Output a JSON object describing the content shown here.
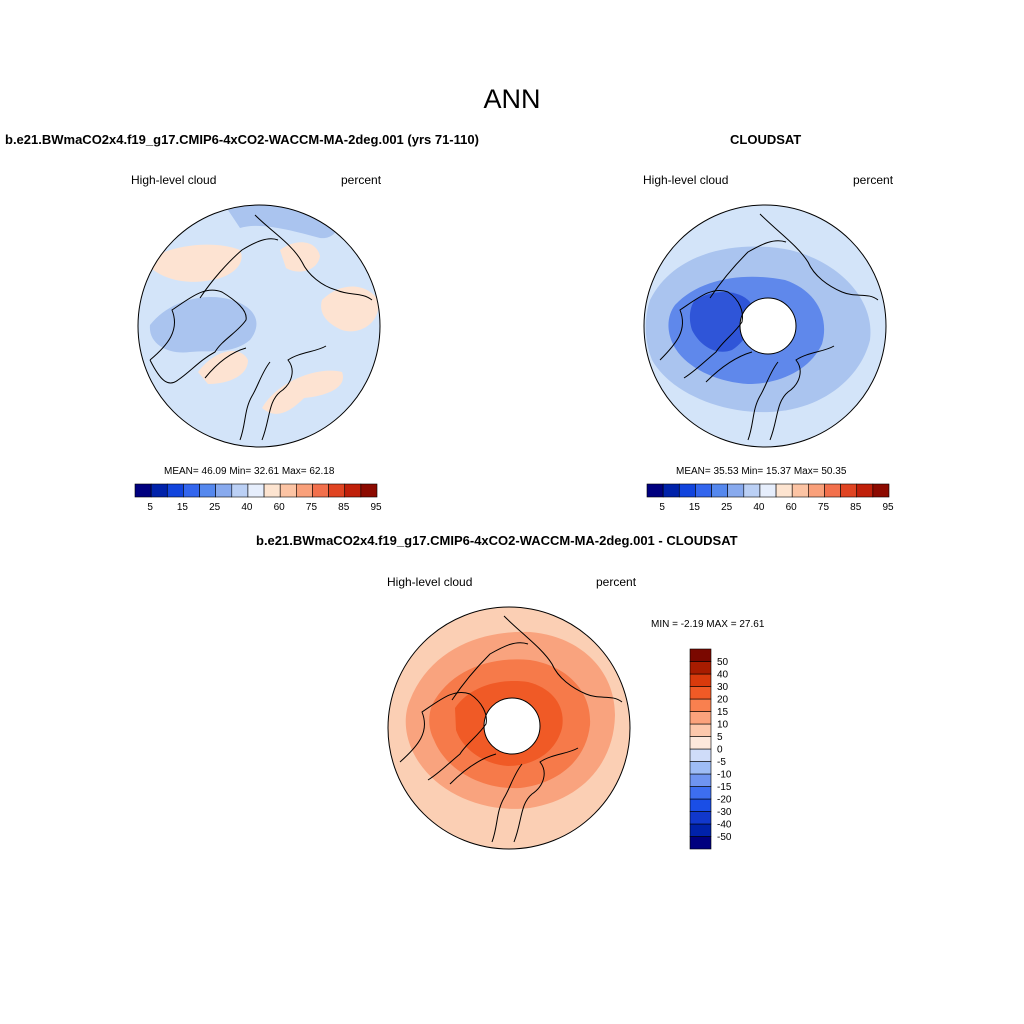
{
  "season": "ANN",
  "panels": [
    {
      "id": "model",
      "title": "b.e21.BWmaCO2x4.f19_g17.CMIP6-4xCO2-WACCM-MA-2deg.001 (yrs 71-110)",
      "left_label": "High-level cloud",
      "right_label": "percent",
      "stats": "MEAN=  46.09  Min=  32.61  Max=  62.18"
    },
    {
      "id": "obs",
      "title": "CLOUDSAT",
      "left_label": "High-level cloud",
      "right_label": "percent",
      "stats": "MEAN=  35.53  Min=  15.37  Max=  50.35"
    },
    {
      "id": "diff",
      "title": "b.e21.BWmaCO2x4.f19_g17.CMIP6-4xCO2-WACCM-MA-2deg.001 - CLOUDSAT",
      "left_label": "High-level cloud",
      "right_label": "percent",
      "stats": "MIN =  -2.19 MAX =  27.61"
    }
  ],
  "colorbars": {
    "top_colors": [
      "#00007f",
      "#0022aa",
      "#1144dd",
      "#3366ee",
      "#5588ee",
      "#88aaee",
      "#bbd0f5",
      "#e6eefc",
      "#fde4d0",
      "#fcc4a4",
      "#f9a07a",
      "#f2704c",
      "#e04422",
      "#c0200a",
      "#8c0a00"
    ],
    "top_labels": [
      "5",
      "15",
      "25",
      "40",
      "60",
      "75",
      "85",
      "95"
    ],
    "diff_colors": [
      "#00007f",
      "#0022aa",
      "#1138cc",
      "#1a4ee6",
      "#3d6ef0",
      "#6f94f0",
      "#9ebcf5",
      "#cfdcf9",
      "#fde8dc",
      "#fdc8ac",
      "#fba27c",
      "#f9804f",
      "#f05a26",
      "#d93a0c",
      "#a81c00",
      "#7a0800"
    ],
    "diff_labels": [
      "50",
      "40",
      "30",
      "20",
      "15",
      "10",
      "5",
      "0",
      "-5",
      "-10",
      "-15",
      "-20",
      "-30",
      "-40",
      "-50"
    ]
  },
  "map_colors": {
    "model_base": "#d3e4f9",
    "model_dark": "#aac4ef",
    "model_warm": "#fde3d2",
    "obs_base": "#d3e4f9",
    "obs_mid": "#aac4ef",
    "obs_dark": "#5f88eb",
    "obs_core": "#2f55d8",
    "diff_base": "#fbcfb4",
    "diff_mid": "#f9a37e",
    "diff_dark": "#f67a4a",
    "diff_core": "#f05a26",
    "missing": "#ffffff"
  }
}
